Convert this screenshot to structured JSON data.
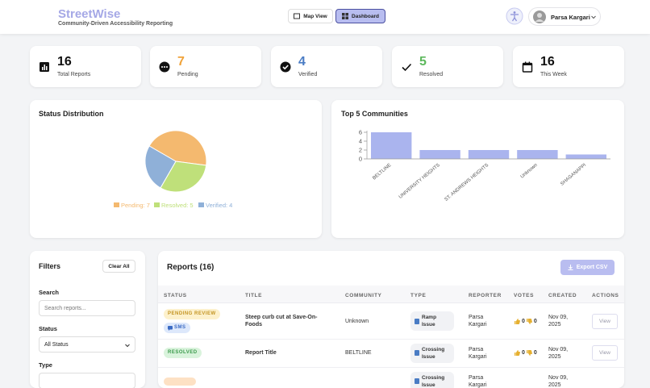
{
  "header": {
    "title": "StreetWise",
    "subtitle": "Community-Driven Accessibility Reporting",
    "nav": [
      "Map View",
      "Dashboard"
    ],
    "user": "Parsa Kargari"
  },
  "stats": [
    {
      "value": 16,
      "label": "Total Reports",
      "color": "#111111"
    },
    {
      "value": 7,
      "label": "Pending",
      "color": "#f0a33a"
    },
    {
      "value": 4,
      "label": "Verified",
      "color": "#4a7cc4"
    },
    {
      "value": 5,
      "label": "Resolved",
      "color": "#5cb85c"
    },
    {
      "value": 16,
      "label": "This Week",
      "color": "#111111"
    }
  ],
  "chart_data": [
    {
      "type": "pie",
      "title": "Status Distribution",
      "categories": [
        "Pending",
        "Resolved",
        "Verified"
      ],
      "values": [
        7,
        5,
        4
      ],
      "value_labels": [
        "Pending: 7",
        "Resolved: 5",
        "Verified: 4"
      ],
      "colors": [
        "#f4b96f",
        "#bfe07a",
        "#8fb0d8"
      ]
    },
    {
      "type": "bar",
      "title": "Top 5 Communities",
      "categories": [
        "BELTLINE",
        "UNIVERSITY HEIGHTS",
        "ST. ANDREWS HEIGHTS",
        "Unknown",
        "SHAGANAPPI"
      ],
      "values": [
        6,
        2,
        2,
        2,
        1
      ],
      "color": "#aab4ee",
      "ylim": [
        0,
        6
      ],
      "yticks": [
        0,
        2,
        4,
        6
      ]
    }
  ],
  "filters": {
    "title": "Filters",
    "clear": "Clear All",
    "search_label": "Search",
    "search_placeholder": "Search reports...",
    "status_label": "Status",
    "status_value": "All Status",
    "type_label": "Type"
  },
  "reports": {
    "title": "Reports (16)",
    "export": "Export CSV",
    "columns": [
      "STATUS",
      "TITLE",
      "COMMUNITY",
      "TYPE",
      "REPORTER",
      "VOTES",
      "CREATED",
      "ACTIONS"
    ],
    "rows": [
      {
        "status": "PENDING REVIEW",
        "source": "SMS",
        "title": "Steep curb cut at Save-On-Foods",
        "community": "Unknown",
        "type": "Ramp Issue",
        "reporter": "Parsa Kargari",
        "up": 0,
        "down": 0,
        "created": "Nov 09, 2025",
        "action": "View"
      },
      {
        "status": "RESOLVED",
        "title": "Report Title",
        "community": "BELTLINE",
        "type": "Crossing Issue",
        "reporter": "Parsa Kargari",
        "up": 0,
        "down": 0,
        "created": "Nov 09, 2025",
        "action": "View"
      },
      {
        "type": "Crossing Issue",
        "reporter": "Parsa Kargari",
        "created": "Nov 09, 2025"
      }
    ]
  }
}
